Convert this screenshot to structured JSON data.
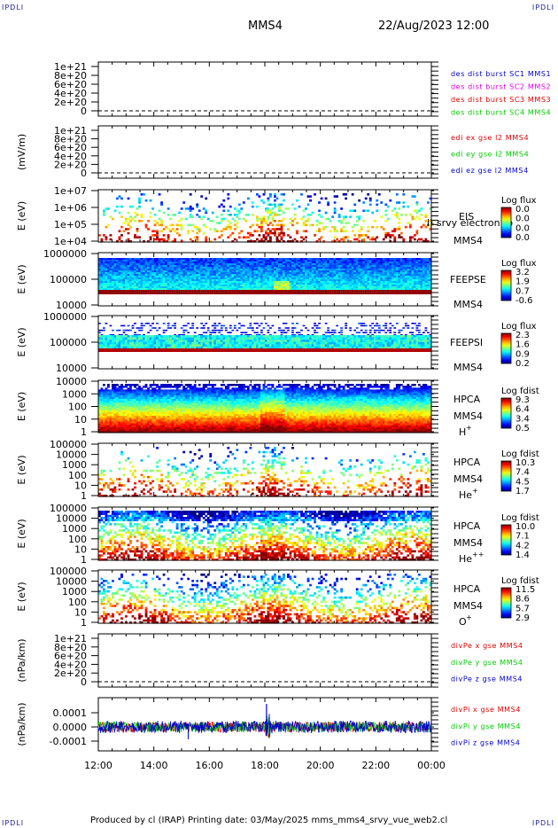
{
  "corner_label": "IPDLI",
  "header": {
    "spacecraft": "MMS4",
    "datetime": "22/Aug/2023 12:00"
  },
  "footer": "Produced by cl (IRAP)   Printing date: 03/May/2025   mms_mms4_srvy_vue_web2.cl",
  "colors": {
    "red": "#e00000",
    "green": "#00cc00",
    "blue": "#0000cc",
    "magenta": "#e000e0",
    "text_blue": "#1a1a9a"
  },
  "chart_data": [
    {
      "type": "line",
      "id": "des_dist",
      "ylabel": "",
      "y_ticks": [
        "1e+21",
        "8e+20",
        "6e+20",
        "4e+20",
        "2e+20",
        "0"
      ],
      "legend": [
        {
          "text": "des dist burst SC1 MMS1",
          "color": "#0000cc"
        },
        {
          "text": "des dist burst SC2 MMS2",
          "color": "#e000e0"
        },
        {
          "text": "des dist burst SC3 MMS3",
          "color": "#e00000"
        },
        {
          "text": "des dist burst SC4 MMS4",
          "color": "#00cc00"
        }
      ]
    },
    {
      "type": "line",
      "id": "edi_e",
      "ylabel": "(mV/m)",
      "y_ticks": [
        "1e+21",
        "8e+20",
        "6e+20",
        "4e+20",
        "2e+20",
        "0"
      ],
      "legend": [
        {
          "text": "edi ex gse l2 MMS4",
          "color": "#e00000"
        },
        {
          "text": "edi ey gse l2 MMS4",
          "color": "#00cc00"
        },
        {
          "text": "edi ez gse l2 MMS4",
          "color": "#0000cc"
        }
      ]
    },
    {
      "type": "heatmap",
      "id": "eis",
      "ylabel": "E (eV)",
      "y_ticks": [
        "1e+07",
        "1e+06",
        "1e+05",
        "1e+04"
      ],
      "labels": [
        "EIS",
        "MMS4"
      ],
      "overlay_text": "l) srvy electron to",
      "colorbar": {
        "title": "Log flux",
        "values": [
          "0.0",
          "0.0",
          "0.0",
          "0.0"
        ]
      }
    },
    {
      "type": "heatmap",
      "id": "feeps_e",
      "ylabel": "E (eV)",
      "y_ticks": [
        "1000000",
        "100000",
        "10000"
      ],
      "labels": [
        "FEEPSE",
        "MMS4"
      ],
      "colorbar": {
        "title": "Log flux",
        "values": [
          "3.2",
          "1.9",
          "0.7",
          "-0.6"
        ]
      }
    },
    {
      "type": "heatmap",
      "id": "feeps_i",
      "ylabel": "E (eV)",
      "y_ticks": [
        "1000000",
        "100000",
        "10000"
      ],
      "labels": [
        "FEEPSI",
        "MMS4"
      ],
      "colorbar": {
        "title": "Log flux",
        "values": [
          "2.3",
          "1.6",
          "0.9",
          "0.2"
        ]
      }
    },
    {
      "type": "heatmap",
      "id": "hpca_h",
      "ylabel": "E (eV)",
      "y_ticks": [
        "10000",
        "1000",
        "100",
        "10",
        "1"
      ],
      "labels": [
        "HPCA",
        "MMS4",
        "H",
        "+"
      ],
      "colorbar": {
        "title": "Log fdist",
        "values": [
          "9.3",
          "6.4",
          "3.4",
          "0.5"
        ]
      }
    },
    {
      "type": "heatmap",
      "id": "hpca_he",
      "ylabel": "E (eV)",
      "y_ticks": [
        "100000",
        "10000",
        "1000",
        "100",
        "10",
        "1"
      ],
      "labels": [
        "HPCA",
        "MMS4",
        "He",
        "+"
      ],
      "colorbar": {
        "title": "Log fdist",
        "values": [
          "10.3",
          "7.4",
          "4.5",
          "1.7"
        ]
      }
    },
    {
      "type": "heatmap",
      "id": "hpca_hepp",
      "ylabel": "E (eV)",
      "y_ticks": [
        "100000",
        "10000",
        "1000",
        "100",
        "10",
        "1"
      ],
      "labels": [
        "HPCA",
        "MMS4",
        "He",
        "++"
      ],
      "colorbar": {
        "title": "Log fdist",
        "values": [
          "10.0",
          "7.1",
          "4.2",
          "1.4"
        ]
      }
    },
    {
      "type": "heatmap",
      "id": "hpca_o",
      "ylabel": "E (eV)",
      "y_ticks": [
        "100000",
        "10000",
        "1000",
        "100",
        "10",
        "1"
      ],
      "labels": [
        "HPCA",
        "MMS4",
        "O",
        "+"
      ],
      "colorbar": {
        "title": "Log fdist",
        "values": [
          "11.5",
          "8.6",
          "5.7",
          "2.9"
        ]
      }
    },
    {
      "type": "line",
      "id": "divpe",
      "ylabel": "(nPa/km)",
      "y_ticks": [
        "1e+21",
        "8e+20",
        "6e+20",
        "4e+20",
        "2e+20",
        "0"
      ],
      "legend": [
        {
          "text": "divPe x gse MMS4",
          "color": "#e00000"
        },
        {
          "text": "divPe y gse MMS4",
          "color": "#00cc00"
        },
        {
          "text": "divPe z gse MMS4",
          "color": "#0000cc"
        }
      ]
    },
    {
      "type": "line",
      "id": "divpi",
      "ylabel": "(nPa/km)",
      "y_ticks": [
        "0.0001",
        "0.0000",
        "-0.0001"
      ],
      "legend": [
        {
          "text": "divPi x gse MMS4",
          "color": "#e00000"
        },
        {
          "text": "divPi y gse MMS4",
          "color": "#00cc00"
        },
        {
          "text": "divPi z gse MMS4",
          "color": "#0000cc"
        }
      ]
    }
  ],
  "x_axis": {
    "ticks": [
      "12:00",
      "14:00",
      "16:00",
      "18:00",
      "20:00",
      "22:00",
      "00:00"
    ]
  }
}
